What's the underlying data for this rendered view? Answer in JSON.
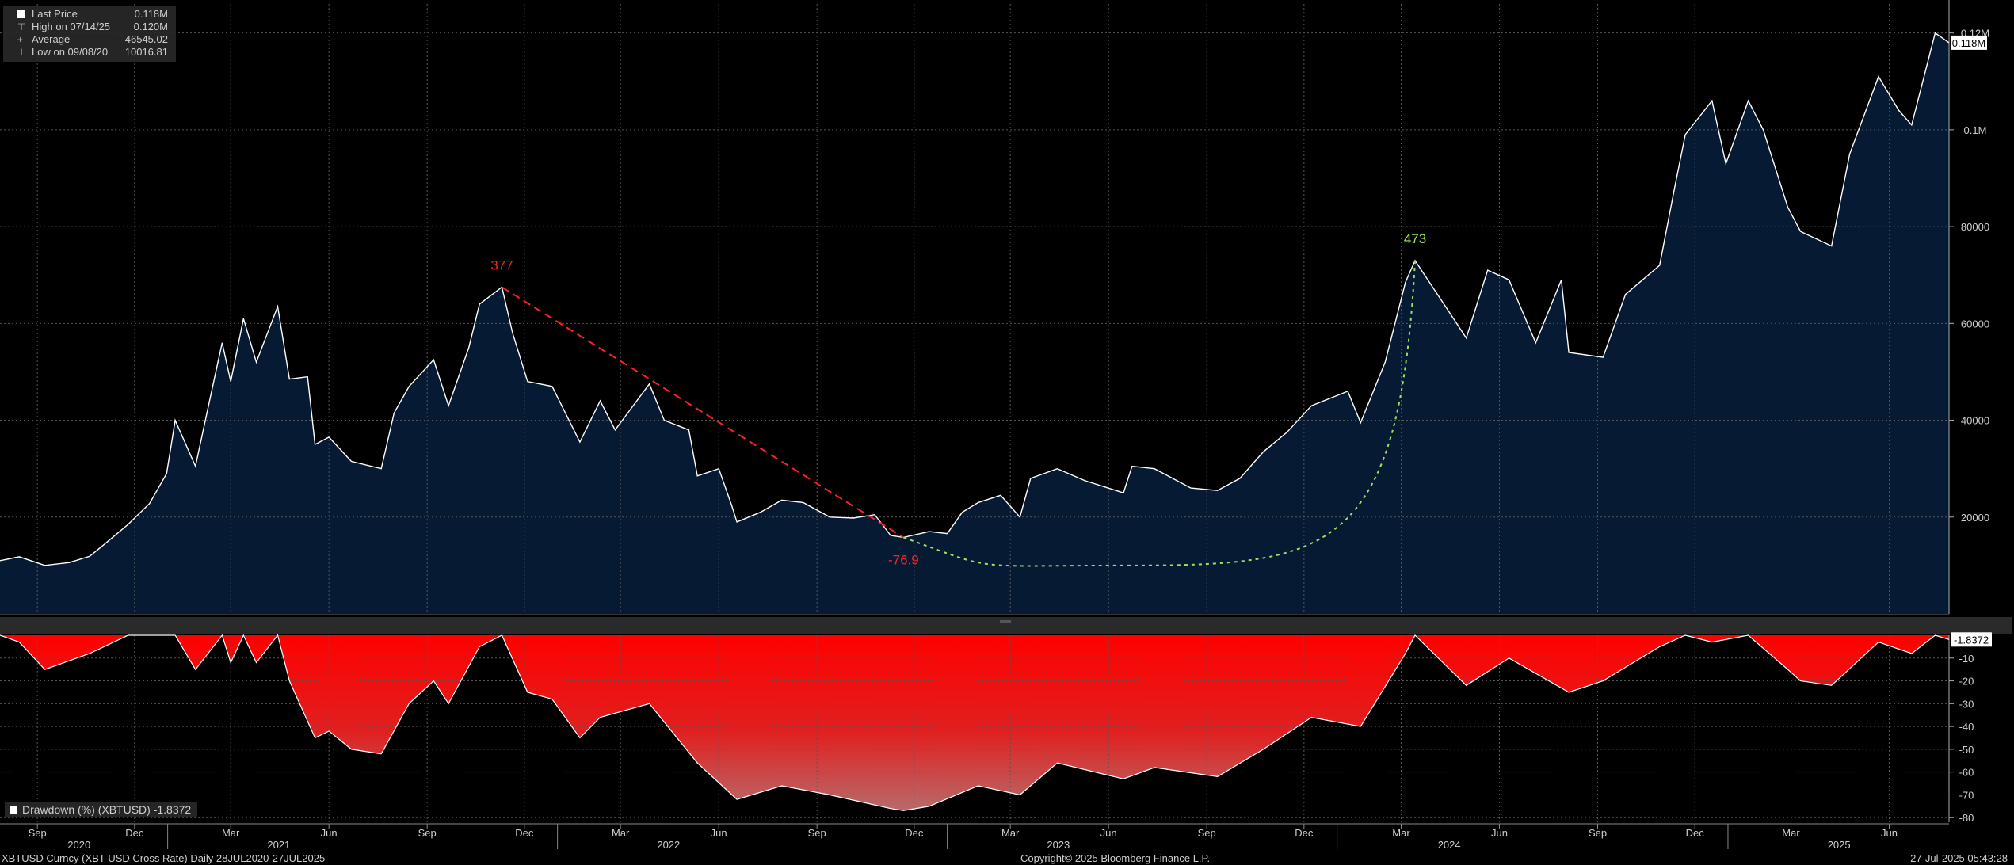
{
  "legend": {
    "items": [
      {
        "label": "Last Price",
        "value": "0.118M"
      },
      {
        "label": "High on 07/14/25",
        "value": "0.120M"
      },
      {
        "label": "Average",
        "value": "46545.02"
      },
      {
        "label": "Low on 09/08/20",
        "value": "10016.81"
      }
    ]
  },
  "drawdown_legend": {
    "label": "Drawdown (%) (XBTUSD) -1.8372"
  },
  "footer": {
    "left": "XBTUSD Curncy (XBT-USD Cross Rate)  Daily 28JUL2020-27JUL2025",
    "center": "Copyright© 2025 Bloomberg Finance L.P.",
    "right": "27-Jul-2025 05:43:28"
  },
  "colors": {
    "background": "#000000",
    "price_area": "#061a33",
    "price_line": "#ffffff",
    "drawdown_fill": "#ff0000",
    "drawdown_fill_bottom": "#b86a6a",
    "annotation_red": "#ff2020",
    "annotation_green": "#9fe060",
    "grid": "#555555"
  },
  "chart_data": [
    {
      "type": "area",
      "series": [
        {
          "name": "Last Price",
          "last_label": "0.118M"
        }
      ],
      "x": [
        "2020-07-28",
        "2020-08-15",
        "2020-09-08",
        "2020-10-01",
        "2020-10-20",
        "2020-11-05",
        "2020-11-25",
        "2020-12-15",
        "2020-12-31",
        "2021-01-08",
        "2021-01-27",
        "2021-02-10",
        "2021-02-21",
        "2021-03-01",
        "2021-03-13",
        "2021-03-25",
        "2021-04-14",
        "2021-04-25",
        "2021-05-12",
        "2021-05-19",
        "2021-06-01",
        "2021-06-22",
        "2021-07-20",
        "2021-08-01",
        "2021-08-15",
        "2021-09-07",
        "2021-09-21",
        "2021-10-10",
        "2021-10-20",
        "2021-11-10",
        "2021-11-20",
        "2021-12-04",
        "2021-12-27",
        "2022-01-22",
        "2022-02-10",
        "2022-02-24",
        "2022-03-28",
        "2022-04-11",
        "2022-05-04",
        "2022-05-12",
        "2022-06-01",
        "2022-06-13",
        "2022-06-18",
        "2022-07-10",
        "2022-07-30",
        "2022-08-19",
        "2022-09-13",
        "2022-10-05",
        "2022-10-25",
        "2022-11-09",
        "2022-11-21",
        "2022-12-15",
        "2023-01-01",
        "2023-01-15",
        "2023-01-30",
        "2023-02-20",
        "2023-03-10",
        "2023-03-20",
        "2023-04-14",
        "2023-05-10",
        "2023-06-15",
        "2023-06-23",
        "2023-07-14",
        "2023-08-17",
        "2023-09-11",
        "2023-10-02",
        "2023-10-24",
        "2023-11-15",
        "2023-12-08",
        "2024-01-11",
        "2024-01-23",
        "2024-02-15",
        "2024-03-05",
        "2024-03-14",
        "2024-04-13",
        "2024-05-01",
        "2024-05-21",
        "2024-06-10",
        "2024-07-05",
        "2024-07-29",
        "2024-08-05",
        "2024-09-06",
        "2024-09-27",
        "2024-10-29",
        "2024-11-12",
        "2024-11-22",
        "2024-12-17",
        "2024-12-30",
        "2025-01-20",
        "2025-02-03",
        "2025-02-26",
        "2025-03-10",
        "2025-04-08",
        "2025-04-25",
        "2025-05-22",
        "2025-06-10",
        "2025-06-22",
        "2025-07-14",
        "2025-07-27"
      ],
      "values": [
        11000,
        11800,
        10016.81,
        10600,
        11900,
        14800,
        18500,
        22800,
        29000,
        40000,
        30500,
        44800,
        56000,
        48000,
        61000,
        52000,
        63500,
        48500,
        49000,
        35000,
        36500,
        31500,
        30000,
        41500,
        47000,
        52500,
        43000,
        55000,
        64000,
        67500,
        58000,
        48000,
        47000,
        35500,
        44000,
        38000,
        47500,
        40000,
        38000,
        28500,
        30000,
        22500,
        19000,
        21000,
        23500,
        23000,
        20000,
        19800,
        20500,
        16200,
        15800,
        17000,
        16600,
        21000,
        23000,
        24500,
        20000,
        28000,
        30000,
        27500,
        25000,
        30500,
        30000,
        26000,
        25500,
        28000,
        33500,
        37500,
        43000,
        46000,
        39500,
        52000,
        68500,
        73000,
        63000,
        57000,
        71000,
        69000,
        56000,
        69000,
        54000,
        53000,
        66000,
        72000,
        88000,
        99000,
        106000,
        93000,
        106000,
        100000,
        84000,
        79000,
        76000,
        95000,
        111000,
        104000,
        101000,
        120000,
        118000
      ],
      "yticks": [
        "20000",
        "40000",
        "60000",
        "80000",
        "0.1M",
        "0.12M"
      ],
      "ylim": [
        0,
        126000
      ],
      "xlim": [
        "2020-07-28",
        "2025-07-27"
      ],
      "month_ticks": [
        "Sep",
        "Dec",
        "Mar",
        "Jun",
        "Sep",
        "Dec",
        "Mar",
        "Jun",
        "Sep",
        "Dec",
        "Mar",
        "Jun",
        "Sep",
        "Dec",
        "Mar",
        "Jun",
        "Sep",
        "Dec",
        "Mar",
        "Jun"
      ],
      "month_tick_dates": [
        "2020-09-01",
        "2020-12-01",
        "2021-03-01",
        "2021-06-01",
        "2021-09-01",
        "2021-12-01",
        "2022-03-01",
        "2022-06-01",
        "2022-09-01",
        "2022-12-01",
        "2023-03-01",
        "2023-06-01",
        "2023-09-01",
        "2023-12-01",
        "2024-03-01",
        "2024-06-01",
        "2024-09-01",
        "2024-12-01",
        "2025-03-01",
        "2025-06-01"
      ],
      "year_labels": [
        "2020",
        "2021",
        "2022",
        "2023",
        "2024",
        "2025"
      ],
      "year_label_dates": [
        "2020-10-10",
        "2021-04-15",
        "2022-04-15",
        "2023-04-15",
        "2024-04-15",
        "2025-04-15"
      ],
      "year_boundaries": [
        "2021-01-01",
        "2022-01-01",
        "2023-01-01",
        "2024-01-01",
        "2025-01-01"
      ],
      "annotations": [
        {
          "text": "377",
          "x": "2021-11-10",
          "y": 67500,
          "color": "red"
        },
        {
          "text": "-76.9",
          "x": "2022-11-21",
          "y": 15800,
          "color": "red"
        },
        {
          "text": "473",
          "x": "2024-03-14",
          "y": 73000,
          "color": "green"
        }
      ],
      "trend_line": {
        "from": {
          "x": "2021-11-10",
          "y": 67500
        },
        "to": {
          "x": "2022-11-21",
          "y": 15800
        },
        "style": "dashed",
        "color": "red"
      },
      "arc": {
        "from": {
          "x": "2022-11-21",
          "y": 15800
        },
        "low": {
          "x": "2023-06-15",
          "y": 10000
        },
        "to": {
          "x": "2024-03-14",
          "y": 73000
        },
        "style": "dotted",
        "color": "green"
      },
      "grid": true
    },
    {
      "type": "area",
      "series": [
        {
          "name": "Drawdown (%) (XBTUSD)",
          "last_label": "-1.8372"
        }
      ],
      "x": [
        "2020-07-28",
        "2020-08-15",
        "2020-09-08",
        "2020-10-20",
        "2020-11-25",
        "2021-01-08",
        "2021-01-27",
        "2021-02-21",
        "2021-03-01",
        "2021-03-13",
        "2021-03-25",
        "2021-04-14",
        "2021-04-25",
        "2021-05-19",
        "2021-06-01",
        "2021-06-22",
        "2021-07-20",
        "2021-08-15",
        "2021-09-07",
        "2021-09-21",
        "2021-10-20",
        "2021-11-10",
        "2021-12-04",
        "2021-12-27",
        "2022-01-22",
        "2022-02-10",
        "2022-03-28",
        "2022-05-12",
        "2022-06-18",
        "2022-07-30",
        "2022-09-13",
        "2022-11-09",
        "2022-11-21",
        "2022-12-15",
        "2023-01-30",
        "2023-03-10",
        "2023-04-14",
        "2023-06-15",
        "2023-07-14",
        "2023-09-11",
        "2023-10-24",
        "2023-12-08",
        "2024-01-23",
        "2024-03-05",
        "2024-03-14",
        "2024-05-01",
        "2024-06-10",
        "2024-08-05",
        "2024-09-06",
        "2024-10-29",
        "2024-11-22",
        "2024-12-17",
        "2025-01-20",
        "2025-02-26",
        "2025-03-10",
        "2025-04-08",
        "2025-05-22",
        "2025-06-22",
        "2025-07-14",
        "2025-07-27"
      ],
      "values": [
        0,
        -3,
        -15,
        -8,
        0,
        0,
        -15,
        0,
        -12,
        0,
        -12,
        0,
        -20,
        -45,
        -42,
        -50,
        -52,
        -30,
        -20,
        -30,
        -5,
        0,
        -25,
        -28,
        -45,
        -36,
        -30,
        -56,
        -72,
        -66,
        -70,
        -76,
        -76.9,
        -75,
        -66,
        -70,
        -56,
        -63,
        -58,
        -62,
        -50,
        -36,
        -40,
        -8,
        0,
        -22,
        -10,
        -25,
        -20,
        -5,
        0,
        -3,
        0,
        -15,
        -20,
        -22,
        -3,
        -8,
        0,
        -1.8372
      ],
      "yticks": [
        "-10",
        "-20",
        "-30",
        "-40",
        "-50",
        "-60",
        "-70",
        "-80"
      ],
      "ylim": [
        -82,
        0
      ],
      "grid": true
    }
  ]
}
